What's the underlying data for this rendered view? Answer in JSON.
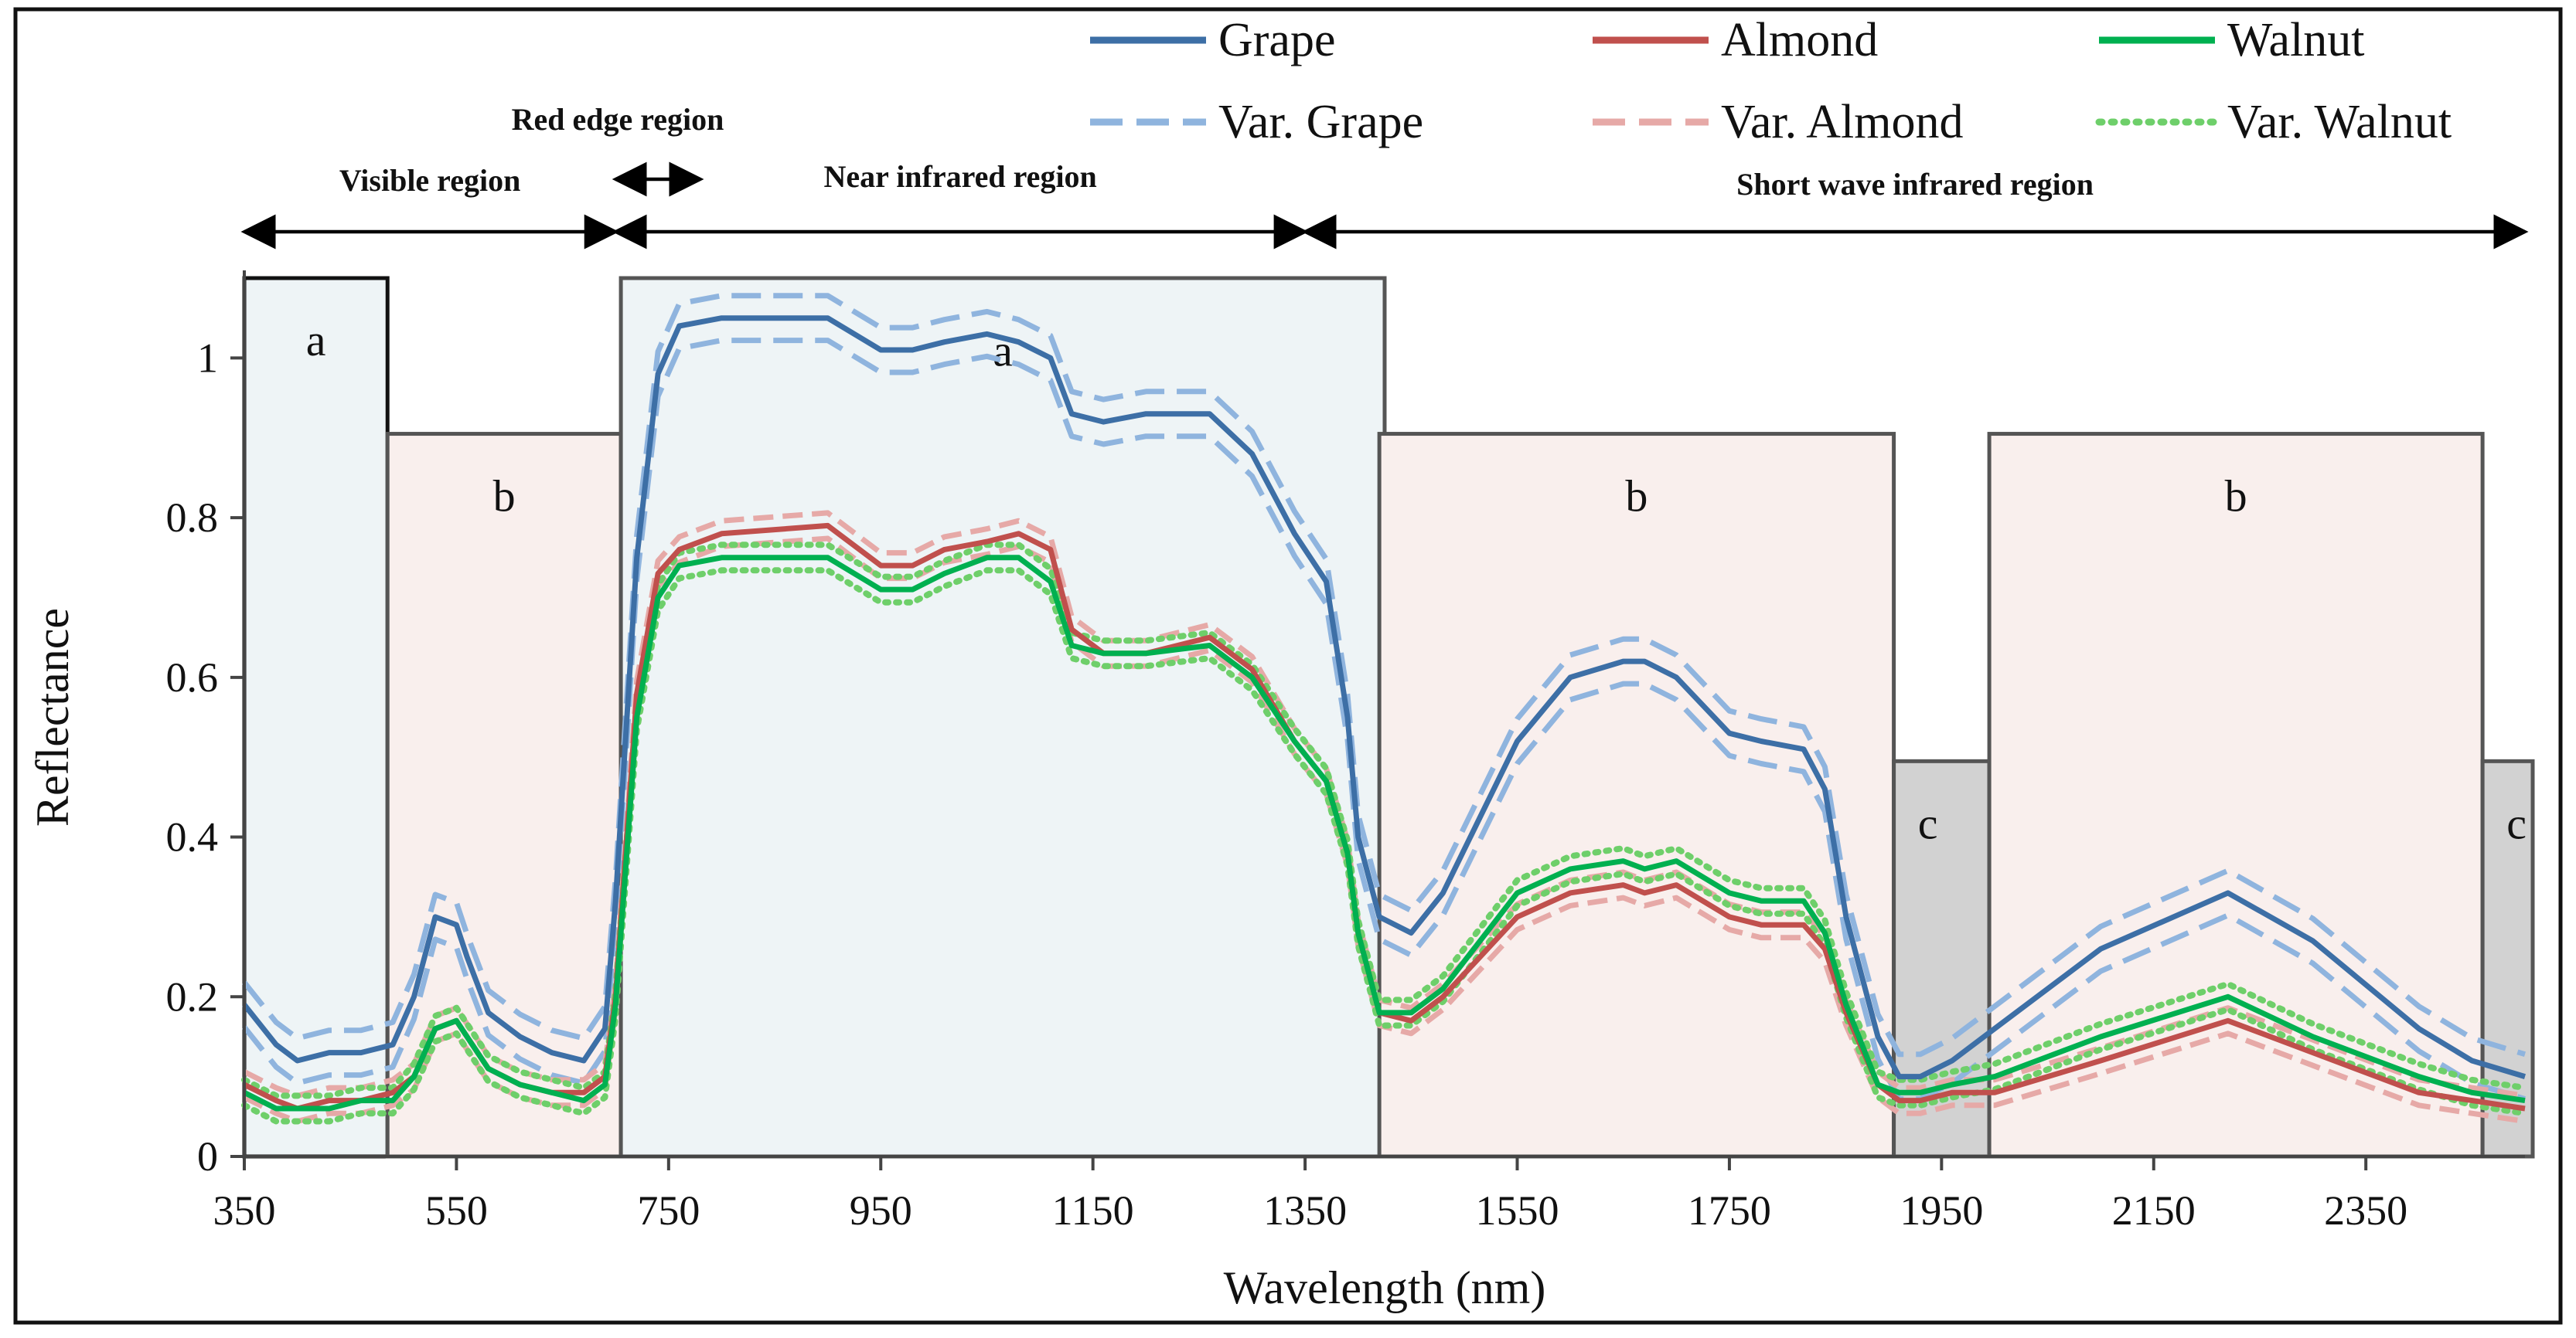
{
  "chart_data": {
    "type": "line",
    "xlabel": "Wavelength (nm)",
    "ylabel": "Reflectance",
    "xlim": [
      350,
      2500
    ],
    "ylim": [
      0,
      1.1
    ],
    "x_ticks": [
      350,
      550,
      750,
      950,
      1150,
      1350,
      1550,
      1750,
      1950,
      2150,
      2350
    ],
    "x_tick_labels": [
      "350",
      "550",
      "750",
      "950",
      "1150",
      "1350",
      "1550",
      "1750",
      "1950",
      "2150",
      "2350"
    ],
    "y_ticks": [
      0,
      0.2,
      0.4,
      0.6,
      0.8,
      1.0
    ],
    "y_tick_labels": [
      "0",
      "0.2",
      "0.4",
      "0.6",
      "0.8",
      "1"
    ],
    "grid": false,
    "legend": [
      {
        "label": "Grape",
        "series": "grape",
        "style": "solid",
        "color": "#3d6fa6"
      },
      {
        "label": "Almond",
        "series": "almond",
        "style": "solid",
        "color": "#c0504d"
      },
      {
        "label": "Walnut",
        "series": "walnut",
        "style": "solid",
        "color": "#00b050"
      },
      {
        "label": "Var. Grape",
        "series": "grape_var",
        "style": "dashed",
        "color": "#8fb4de"
      },
      {
        "label": "Var. Almond",
        "series": "almond_var",
        "style": "dashed",
        "color": "#e6a9a7"
      },
      {
        "label": "Var. Walnut",
        "series": "walnut_var",
        "style": "dotted",
        "color": "#6ecf6a"
      }
    ],
    "regions": [
      {
        "label": "Visible region",
        "x": [
          350,
          700
        ]
      },
      {
        "label": "Red edge region",
        "x": [
          700,
          780
        ]
      },
      {
        "label": "Near infrared region",
        "x": [
          700,
          1350
        ]
      },
      {
        "label": "Short wave infrared region",
        "x": [
          1350,
          2500
        ]
      }
    ],
    "boxes": [
      {
        "letter": "a",
        "x": [
          350,
          485
        ],
        "y_top": 1.1,
        "fill": "#eef4f6",
        "edge": "#111111"
      },
      {
        "letter": "b",
        "x": [
          485,
          705
        ],
        "y_top": 0.905,
        "fill": "#f9efed",
        "edge": "#555555"
      },
      {
        "letter": "a",
        "x": [
          705,
          1425
        ],
        "y_top": 1.1,
        "fill": "#eef4f6",
        "edge": "#555555"
      },
      {
        "letter": "b",
        "x": [
          1420,
          1905
        ],
        "y_top": 0.905,
        "fill": "#f9efed",
        "edge": "#555555"
      },
      {
        "letter": "c",
        "x": [
          1905,
          1995
        ],
        "y_top": 0.495,
        "fill": "#d2d2d2",
        "edge": "#555555"
      },
      {
        "letter": "b",
        "x": [
          1995,
          2460
        ],
        "y_top": 0.905,
        "fill": "#f9efed",
        "edge": "#555555"
      },
      {
        "letter": "c",
        "x": [
          2460,
          2510
        ],
        "y_top": 0.495,
        "fill": "#d2d2d2",
        "edge": "#555555"
      }
    ],
    "x": [
      350,
      380,
      400,
      430,
      460,
      490,
      510,
      530,
      550,
      560,
      580,
      610,
      640,
      670,
      690,
      700,
      720,
      740,
      760,
      800,
      900,
      950,
      980,
      1010,
      1050,
      1080,
      1110,
      1130,
      1160,
      1200,
      1260,
      1300,
      1340,
      1370,
      1390,
      1400,
      1420,
      1450,
      1480,
      1550,
      1600,
      1650,
      1670,
      1700,
      1750,
      1780,
      1820,
      1840,
      1860,
      1890,
      1910,
      1930,
      1960,
      2000,
      2100,
      2220,
      2300,
      2400,
      2450,
      2500
    ],
    "series": [
      {
        "name": "Grape",
        "key": "grape",
        "color": "#3d6fa6",
        "values": [
          0.19,
          0.14,
          0.12,
          0.13,
          0.13,
          0.14,
          0.2,
          0.3,
          0.29,
          0.25,
          0.18,
          0.15,
          0.13,
          0.12,
          0.16,
          0.32,
          0.75,
          0.98,
          1.04,
          1.05,
          1.05,
          1.01,
          1.01,
          1.02,
          1.03,
          1.02,
          1.0,
          0.93,
          0.92,
          0.93,
          0.93,
          0.88,
          0.78,
          0.72,
          0.55,
          0.4,
          0.3,
          0.28,
          0.33,
          0.52,
          0.6,
          0.62,
          0.62,
          0.6,
          0.53,
          0.52,
          0.51,
          0.46,
          0.3,
          0.15,
          0.1,
          0.1,
          0.12,
          0.16,
          0.26,
          0.33,
          0.27,
          0.16,
          0.12,
          0.1
        ]
      },
      {
        "name": "Almond",
        "key": "almond",
        "color": "#c0504d",
        "values": [
          0.09,
          0.07,
          0.06,
          0.07,
          0.07,
          0.08,
          0.1,
          0.16,
          0.17,
          0.15,
          0.11,
          0.09,
          0.08,
          0.08,
          0.1,
          0.2,
          0.58,
          0.73,
          0.76,
          0.78,
          0.79,
          0.74,
          0.74,
          0.76,
          0.77,
          0.78,
          0.76,
          0.66,
          0.63,
          0.63,
          0.65,
          0.61,
          0.52,
          0.47,
          0.38,
          0.28,
          0.18,
          0.17,
          0.2,
          0.3,
          0.33,
          0.34,
          0.33,
          0.34,
          0.3,
          0.29,
          0.29,
          0.26,
          0.18,
          0.09,
          0.07,
          0.07,
          0.08,
          0.08,
          0.12,
          0.17,
          0.13,
          0.08,
          0.07,
          0.06
        ]
      },
      {
        "name": "Walnut",
        "key": "walnut",
        "color": "#00b050",
        "values": [
          0.08,
          0.06,
          0.06,
          0.06,
          0.07,
          0.07,
          0.1,
          0.16,
          0.17,
          0.15,
          0.11,
          0.09,
          0.08,
          0.07,
          0.09,
          0.19,
          0.55,
          0.7,
          0.74,
          0.75,
          0.75,
          0.71,
          0.71,
          0.73,
          0.75,
          0.75,
          0.72,
          0.64,
          0.63,
          0.63,
          0.64,
          0.6,
          0.52,
          0.47,
          0.38,
          0.28,
          0.18,
          0.18,
          0.21,
          0.33,
          0.36,
          0.37,
          0.36,
          0.37,
          0.33,
          0.32,
          0.32,
          0.28,
          0.19,
          0.09,
          0.08,
          0.08,
          0.09,
          0.1,
          0.15,
          0.2,
          0.15,
          0.1,
          0.08,
          0.07
        ]
      }
    ]
  }
}
